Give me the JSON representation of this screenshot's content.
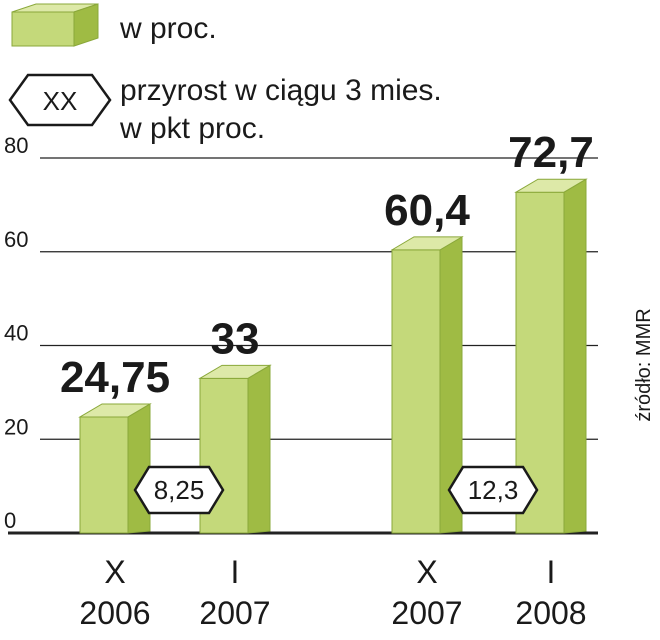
{
  "legend": {
    "bar_label": "w proc.",
    "badge_symbol": "XX",
    "badge_label_line1": "przyrost w ciągu 3 mies.",
    "badge_label_line2": "w pkt proc."
  },
  "source": "źródło: MMR",
  "chart_data": {
    "type": "bar",
    "categories": [
      {
        "line1": "X",
        "line2": "2006"
      },
      {
        "line1": "I",
        "line2": "2007"
      },
      {
        "line1": "X",
        "line2": "2007"
      },
      {
        "line1": "I",
        "line2": "2008"
      }
    ],
    "values": [
      24.75,
      33,
      60.4,
      72.7
    ],
    "value_labels": [
      "24,75",
      "33",
      "60,4",
      "72,7"
    ],
    "highlight_index": 3,
    "increments": [
      {
        "between": [
          0,
          1
        ],
        "label": "8,25"
      },
      {
        "between": [
          2,
          3
        ],
        "label": "12,3"
      }
    ],
    "ylim": [
      0,
      80
    ],
    "yticks": [
      0,
      20,
      40,
      60,
      80
    ],
    "grid": true,
    "legend_position": "top-left",
    "colors": {
      "bar_front": "#c4d97a",
      "bar_side": "#9fbb44",
      "bar_top": "#dde9a8",
      "highlight_label": "#c8102e",
      "grid": "#222222"
    }
  }
}
